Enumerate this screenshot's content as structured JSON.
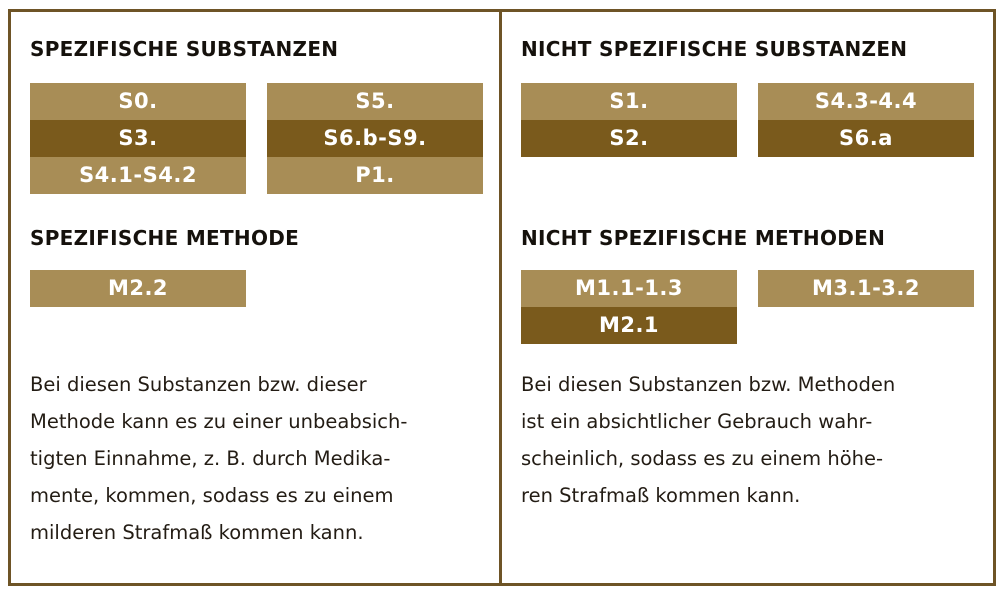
{
  "left": {
    "substances_heading": "SPEZIFISCHE SUBSTANZEN",
    "substances": [
      "S0.",
      "S5.",
      "S3.",
      "S6.b-S9.",
      "S4.1-S4.2",
      "P1."
    ],
    "method_heading": "SPEZIFISCHE METHODE",
    "methods": [
      "M2.2"
    ],
    "text_lines": [
      "Bei diesen Substanzen bzw. dieser",
      "Methode kann es zu einer unbeabsich-",
      "tigten Einnahme, z. B. durch Medika-",
      "mente, kommen, sodass es zu einem",
      "milderen Strafmaß kommen kann."
    ]
  },
  "right": {
    "substances_heading": "NICHT SPEZIFISCHE SUBSTANZEN",
    "substances": [
      "S1.",
      "S4.3-4.4",
      "S2.",
      "S6.a"
    ],
    "method_heading": "NICHT SPEZIFISCHE METHODEN",
    "methods": [
      "M1.1-1.3",
      "M3.1-3.2",
      "M2.1"
    ],
    "text_lines": [
      "Bei diesen Substanzen bzw. Methoden",
      "ist ein absichtlicher Gebrauch wahr-",
      "scheinlich, sodass es zu einem höhe-",
      "ren Strafmaß kommen kann."
    ]
  },
  "colors": {
    "light": "#a88d56",
    "dark": "#7a5a1c",
    "border": "#6e5426"
  }
}
